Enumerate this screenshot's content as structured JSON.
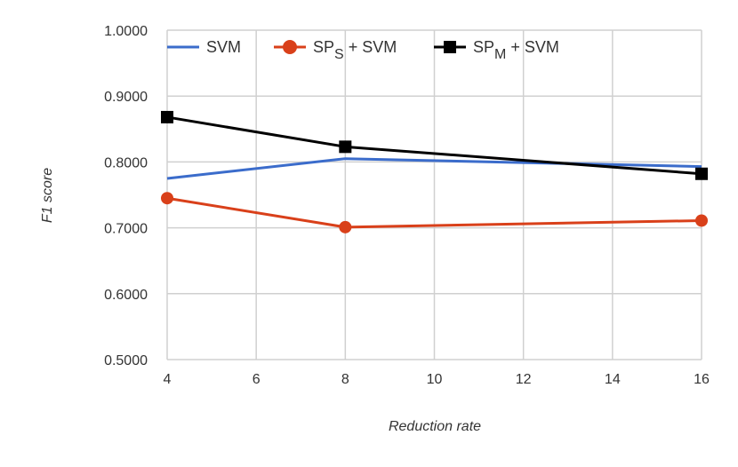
{
  "chart_data": {
    "type": "line",
    "title": "",
    "xlabel": "Reduction rate",
    "ylabel": "F1 score",
    "xlim": [
      4,
      16
    ],
    "ylim": [
      0.5,
      1.0
    ],
    "x_ticks": [
      "4",
      "6",
      "8",
      "10",
      "12",
      "14",
      "16"
    ],
    "y_ticks": [
      "0.5000",
      "0.6000",
      "0.7000",
      "0.8000",
      "0.9000",
      "1.0000"
    ],
    "grid": true,
    "legend_position": "top",
    "series": [
      {
        "name": "SVM",
        "legend": {
          "base": "SVM",
          "sub": "",
          "suffix": ""
        },
        "color": "#3b6ccb",
        "marker": "none",
        "x": [
          4,
          8,
          16
        ],
        "values": [
          0.775,
          0.805,
          0.793
        ]
      },
      {
        "name": "SPS + SVM",
        "legend": {
          "base": "SP",
          "sub": "S",
          "suffix": " + SVM"
        },
        "color": "#d9401a",
        "marker": "circle",
        "x": [
          4,
          8,
          16
        ],
        "values": [
          0.745,
          0.701,
          0.711
        ]
      },
      {
        "name": "SPM + SVM",
        "legend": {
          "base": "SP",
          "sub": "M",
          "suffix": " + SVM"
        },
        "color": "#000000",
        "marker": "square",
        "x": [
          4,
          8,
          16
        ],
        "values": [
          0.868,
          0.823,
          0.782
        ]
      }
    ]
  }
}
